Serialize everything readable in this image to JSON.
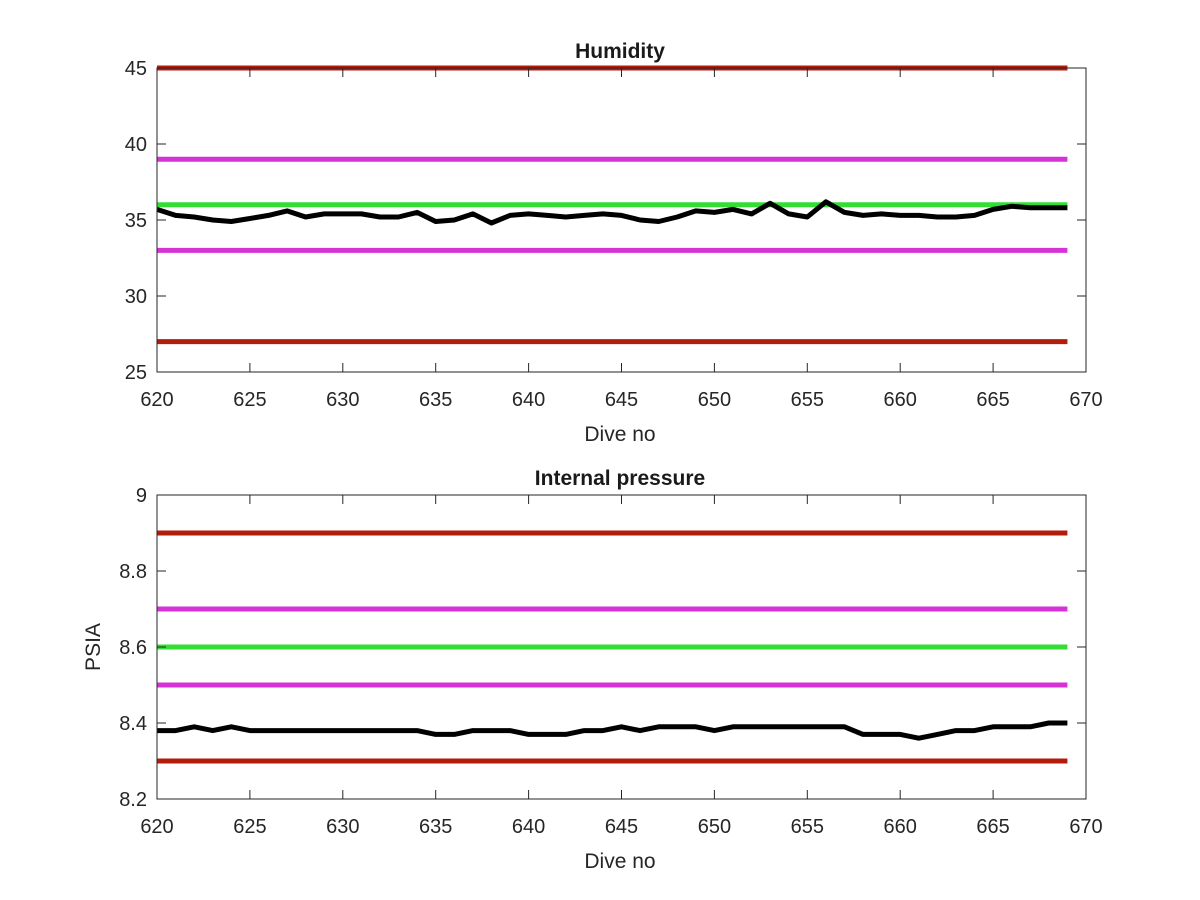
{
  "chart_data": [
    {
      "type": "line",
      "title": "Humidity",
      "xlabel": "Dive no",
      "ylabel": "",
      "xlim": [
        620,
        670
      ],
      "ylim": [
        25,
        45
      ],
      "xticks": [
        "620",
        "625",
        "630",
        "635",
        "640",
        "645",
        "650",
        "655",
        "660",
        "665",
        "670"
      ],
      "yticks": [
        "25",
        "30",
        "35",
        "40",
        "45"
      ],
      "grid": false,
      "reference_lines": [
        {
          "y": 45,
          "color": "#b31b0b"
        },
        {
          "y": 39,
          "color": "#d633d6"
        },
        {
          "y": 36,
          "color": "#33dd33"
        },
        {
          "y": 33,
          "color": "#d633d6"
        },
        {
          "y": 27,
          "color": "#b31b0b"
        }
      ],
      "series": [
        {
          "color": "#000000",
          "x": [
            620,
            621,
            622,
            623,
            624,
            625,
            626,
            627,
            628,
            629,
            630,
            631,
            632,
            633,
            634,
            635,
            636,
            637,
            638,
            639,
            640,
            641,
            642,
            643,
            644,
            645,
            646,
            647,
            648,
            649,
            650,
            651,
            652,
            653,
            654,
            655,
            656,
            657,
            658,
            659,
            660,
            661,
            662,
            663,
            664,
            665,
            666,
            667,
            668,
            669
          ],
          "y": [
            35.7,
            35.3,
            35.2,
            35.0,
            34.9,
            35.1,
            35.3,
            35.6,
            35.2,
            35.4,
            35.4,
            35.4,
            35.2,
            35.2,
            35.5,
            34.9,
            35.0,
            35.4,
            34.8,
            35.3,
            35.4,
            35.3,
            35.2,
            35.3,
            35.4,
            35.3,
            35.0,
            34.9,
            35.2,
            35.6,
            35.5,
            35.7,
            35.4,
            36.1,
            35.4,
            35.2,
            36.2,
            35.5,
            35.3,
            35.4,
            35.3,
            35.3,
            35.2,
            35.2,
            35.3,
            35.7,
            35.9,
            35.8,
            35.8,
            35.8
          ]
        }
      ]
    },
    {
      "type": "line",
      "title": "Internal pressure",
      "xlabel": "Dive no",
      "ylabel": "PSIA",
      "xlim": [
        620,
        670
      ],
      "ylim": [
        8.2,
        9.0
      ],
      "xticks": [
        "620",
        "625",
        "630",
        "635",
        "640",
        "645",
        "650",
        "655",
        "660",
        "665",
        "670"
      ],
      "yticks": [
        "8.2",
        "8.4",
        "8.6",
        "8.8",
        "9"
      ],
      "grid": false,
      "reference_lines": [
        {
          "y": 8.9,
          "color": "#b31b0b"
        },
        {
          "y": 8.7,
          "color": "#d633d6"
        },
        {
          "y": 8.6,
          "color": "#33dd33"
        },
        {
          "y": 8.5,
          "color": "#d633d6"
        },
        {
          "y": 8.3,
          "color": "#b31b0b"
        }
      ],
      "series": [
        {
          "color": "#000000",
          "x": [
            620,
            621,
            622,
            623,
            624,
            625,
            626,
            627,
            628,
            629,
            630,
            631,
            632,
            633,
            634,
            635,
            636,
            637,
            638,
            639,
            640,
            641,
            642,
            643,
            644,
            645,
            646,
            647,
            648,
            649,
            650,
            651,
            652,
            653,
            654,
            655,
            656,
            657,
            658,
            659,
            660,
            661,
            662,
            663,
            664,
            665,
            666,
            667,
            668,
            669
          ],
          "y": [
            8.38,
            8.38,
            8.39,
            8.38,
            8.39,
            8.38,
            8.38,
            8.38,
            8.38,
            8.38,
            8.38,
            8.38,
            8.38,
            8.38,
            8.38,
            8.37,
            8.37,
            8.38,
            8.38,
            8.38,
            8.37,
            8.37,
            8.37,
            8.38,
            8.38,
            8.39,
            8.38,
            8.39,
            8.39,
            8.39,
            8.38,
            8.39,
            8.39,
            8.39,
            8.39,
            8.39,
            8.39,
            8.39,
            8.37,
            8.37,
            8.37,
            8.36,
            8.37,
            8.38,
            8.38,
            8.39,
            8.39,
            8.39,
            8.4,
            8.4
          ]
        }
      ]
    }
  ]
}
